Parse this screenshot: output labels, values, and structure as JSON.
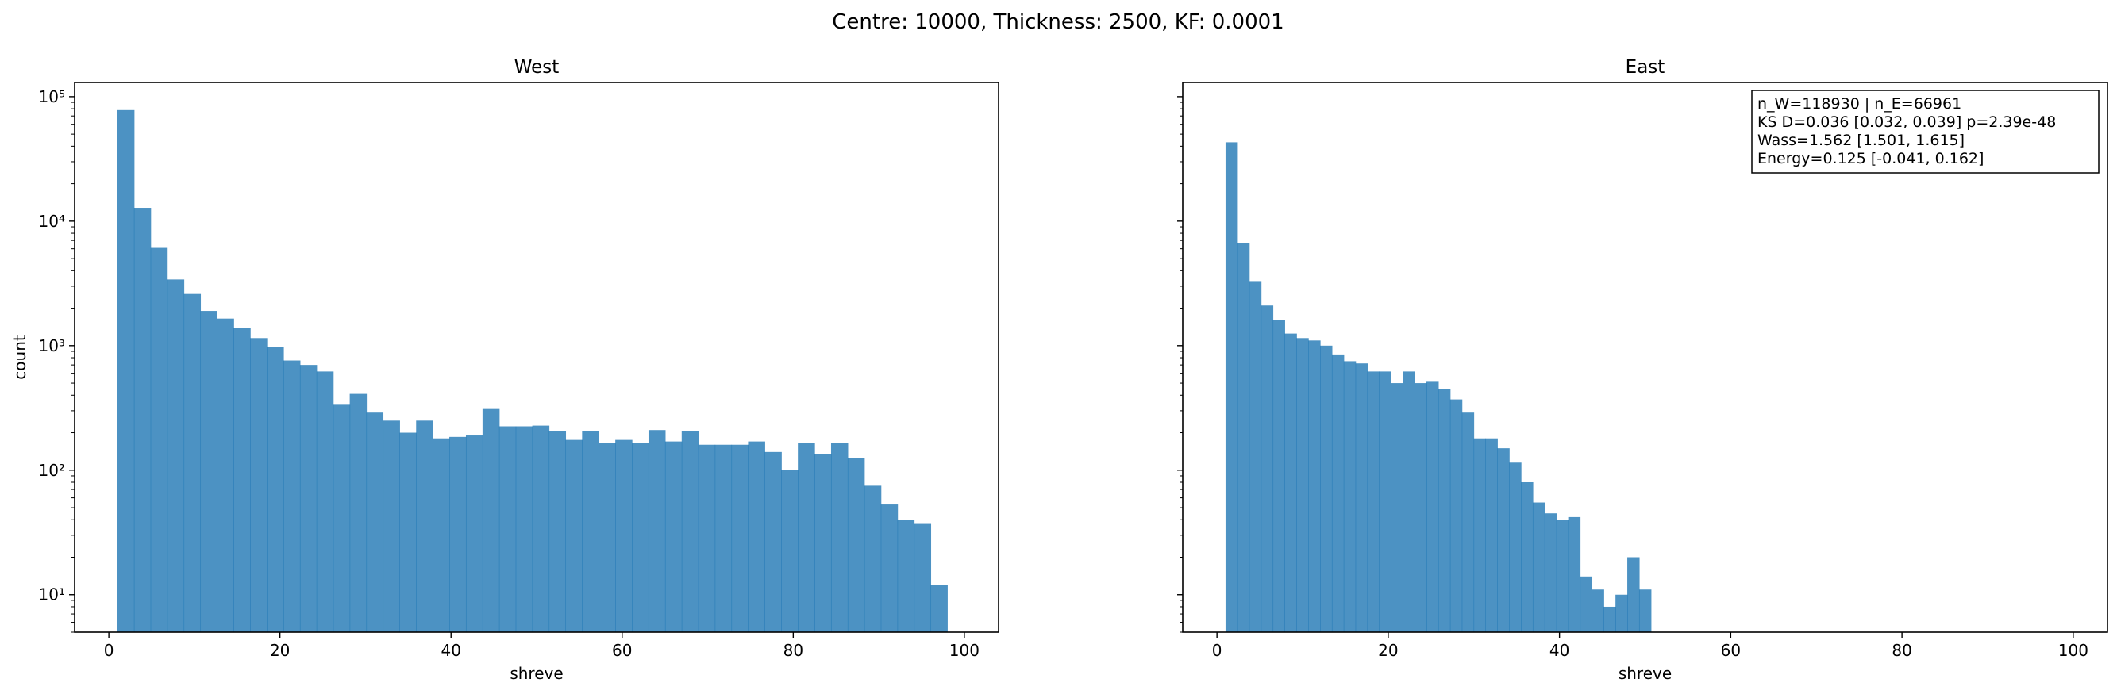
{
  "figure": {
    "suptitle": "Centre: 10000, Thickness: 2500, KF: 0.0001"
  },
  "chart_data": [
    {
      "type": "bar",
      "subtype": "histogram",
      "title": "West",
      "xlabel": "shreve",
      "ylabel": "count",
      "yscale": "log",
      "xlim": [
        -4,
        104
      ],
      "ylim": [
        5,
        130000
      ],
      "xticks": [
        0,
        20,
        40,
        60,
        80,
        100
      ],
      "yticks": [
        10,
        100,
        1000,
        10000,
        100000
      ],
      "grid": false,
      "bar_color": "#1f77b4",
      "bin_width": 1.94,
      "bin_start": 1,
      "values": [
        78000,
        12800,
        6100,
        3400,
        2600,
        1900,
        1650,
        1380,
        1150,
        980,
        760,
        700,
        620,
        340,
        410,
        290,
        250,
        200,
        250,
        180,
        185,
        190,
        310,
        225,
        225,
        228,
        205,
        175,
        205,
        165,
        175,
        165,
        210,
        170,
        205,
        160,
        160,
        160,
        170,
        140,
        100,
        165,
        135,
        165,
        125,
        75,
        53,
        40,
        37,
        12
      ]
    },
    {
      "type": "bar",
      "subtype": "histogram",
      "title": "East",
      "xlabel": "shreve",
      "ylabel": "",
      "yscale": "log",
      "xlim": [
        -4,
        104
      ],
      "ylim": [
        5,
        130000
      ],
      "xticks": [
        0,
        20,
        40,
        60,
        80,
        100
      ],
      "grid": false,
      "bar_color": "#1f77b4",
      "bin_width": 1.38,
      "bin_start": 1,
      "values": [
        43000,
        6700,
        3300,
        2100,
        1600,
        1250,
        1150,
        1100,
        1000,
        850,
        750,
        720,
        620,
        620,
        500,
        620,
        500,
        520,
        450,
        370,
        290,
        180,
        180,
        150,
        115,
        80,
        55,
        45,
        40,
        42,
        14,
        11,
        8,
        10,
        20,
        11
      ],
      "annotation": [
        "n_W=118930 | n_E=66961",
        "KS D=0.036 [0.032, 0.039]  p=2.39e-48",
        "Wass=1.562 [1.501, 1.615]",
        "Energy=0.125 [-0.041, 0.162]"
      ]
    }
  ]
}
